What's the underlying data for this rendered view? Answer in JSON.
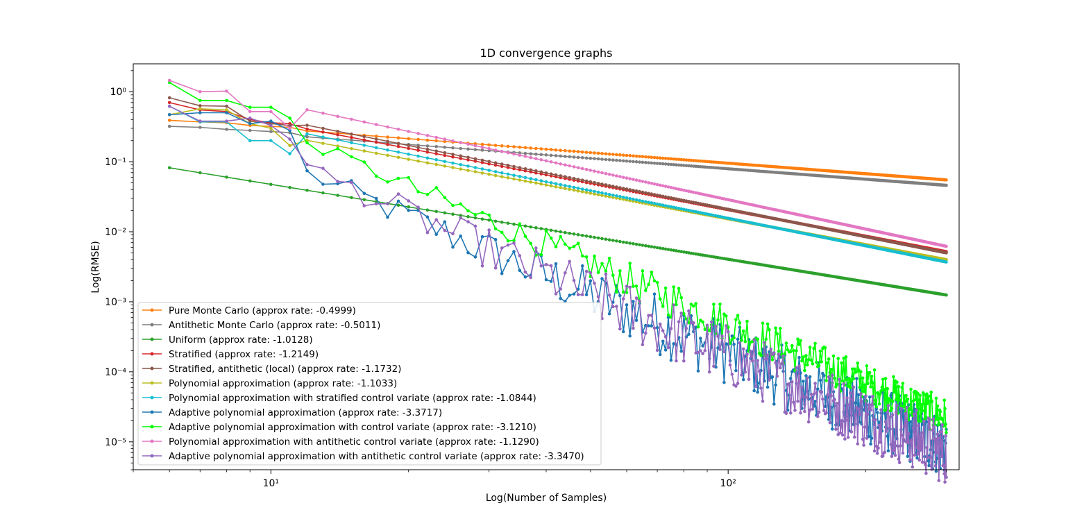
{
  "chart_data": {
    "type": "line",
    "title": "1D convergence graphs",
    "xlabel": "Log(Number of Samples)",
    "ylabel": "Log(RMSE)",
    "xscale": "log",
    "yscale": "log",
    "xlim": [
      5,
      320
    ],
    "ylim": [
      4e-06,
      2.5
    ],
    "grid": false,
    "legend_position": "lower-left",
    "x_ticks": [
      {
        "value": 10,
        "label": "10¹"
      },
      {
        "value": 100,
        "label": "10²"
      }
    ],
    "y_ticks": [
      {
        "value": 1e-05,
        "label": "10⁻⁵"
      },
      {
        "value": 0.0001,
        "label": "10⁻⁴"
      },
      {
        "value": 0.001,
        "label": "10⁻³"
      },
      {
        "value": 0.01,
        "label": "10⁻²"
      },
      {
        "value": 0.1,
        "label": "10⁻¹"
      },
      {
        "value": 1,
        "label": "10⁰"
      }
    ],
    "x_start": 6,
    "x_end": 300,
    "series": [
      {
        "name": "Pure Monte Carlo (approx rate: -0.4999)",
        "color": "#ff7f0e",
        "rate": -0.4999,
        "y_start": 0.39,
        "y_end": 0.055,
        "noise": 0.0,
        "early": [
          0.39,
          0.37,
          0.36,
          0.33,
          0.32,
          0.31
        ]
      },
      {
        "name": "Antithetic Monte Carlo (approx rate: -0.5011)",
        "color": "#7f7f7f",
        "rate": -0.5011,
        "y_start": 0.32,
        "y_end": 0.046,
        "noise": 0.0,
        "early": [
          0.32,
          0.31,
          0.29,
          0.28,
          0.27,
          0.26
        ]
      },
      {
        "name": "Uniform (approx rate: -1.0128)",
        "color": "#2ca02c",
        "rate": -1.0128,
        "y_start": 0.082,
        "y_end": 0.00125,
        "noise": 0.0,
        "early": null
      },
      {
        "name": "Stratified (approx rate: -1.2149)",
        "color": "#d62728",
        "rate": -1.2149,
        "y_start": 0.7,
        "y_end": 0.0052,
        "noise": 0.0,
        "early": [
          0.7,
          0.55,
          0.52,
          0.4,
          0.36,
          0.35
        ]
      },
      {
        "name": "Stratified, antithetic (local) (approx rate: -1.1732)",
        "color": "#8c564b",
        "rate": -1.1732,
        "y_start": 0.82,
        "y_end": 0.005,
        "noise": 0.0,
        "early": [
          0.82,
          0.63,
          0.62,
          0.38,
          0.35,
          0.33
        ]
      },
      {
        "name": "Polynomial approximation (approx rate: -1.1033)",
        "color": "#bcbd22",
        "rate": -1.1033,
        "y_start": 0.47,
        "y_end": 0.004,
        "noise": 0.0,
        "early": [
          0.47,
          0.57,
          0.55,
          0.35,
          0.3,
          0.17
        ]
      },
      {
        "name": "Polynomial approximation with stratified control variate (approx rate: -1.0844)",
        "color": "#17becf",
        "rate": -1.0844,
        "y_start": 0.62,
        "y_end": 0.0037,
        "noise": 0.0,
        "early": [
          0.62,
          0.37,
          0.37,
          0.2,
          0.2,
          0.13
        ]
      },
      {
        "name": "Adaptive polynomial approximation (approx rate: -3.3717)",
        "color": "#1f77b4",
        "rate": -3.3717,
        "y_start": 0.47,
        "y_end": 8.5e-06,
        "noise": 0.9,
        "early": [
          0.47,
          0.5,
          0.5,
          0.35,
          0.38,
          0.28
        ]
      },
      {
        "name": "Adaptive polynomial approximation with control variate (approx rate: -3.1210)",
        "color": "#00ff00",
        "rate": -3.121,
        "y_start": 1.35,
        "y_end": 2.2e-05,
        "noise": 0.55,
        "early": [
          1.35,
          0.75,
          0.75,
          0.6,
          0.6,
          0.42
        ]
      },
      {
        "name": "Polynomial approximation with antithetic control variate (approx rate: -1.1290)",
        "color": "#e377c2",
        "rate": -1.129,
        "y_start": 1.45,
        "y_end": 0.0062,
        "noise": 0.0,
        "early": [
          1.45,
          1.0,
          1.02,
          0.52,
          0.52,
          0.3
        ]
      },
      {
        "name": "Adaptive polynomial approximation with antithetic control variate (approx rate: -3.3470)",
        "color": "#9467bd",
        "rate": -3.347,
        "y_start": 0.62,
        "y_end": 6.8e-06,
        "noise": 0.9,
        "early": [
          0.62,
          0.38,
          0.38,
          0.42,
          0.33,
          0.21
        ]
      }
    ]
  }
}
